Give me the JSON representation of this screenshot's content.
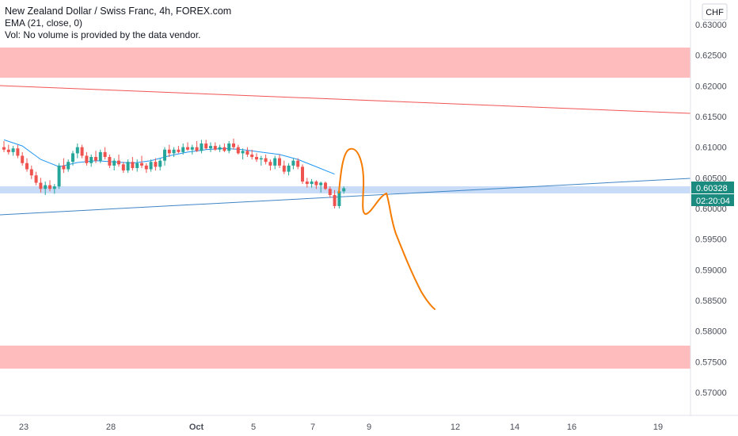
{
  "legend": {
    "title": "New Zealand Dollar / Swiss Franc, 4h, FOREX.com",
    "ema": "EMA (21, close, 0)",
    "vol": "Vol: No volume is provided by the data vendor."
  },
  "currency_button": "CHF",
  "price_label": "0.60328",
  "countdown_label": "02:20:04",
  "colors": {
    "up": "#26a69a",
    "down": "#ef5350",
    "ema": "#2196f3",
    "zone_red": "#ffbcbc",
    "zone_blue": "#c8dcf7",
    "resistance": "#f05454",
    "trend": "#3d85c6",
    "projection": "#f57c00",
    "price_badge": "#1b8a7f"
  },
  "chart_data": {
    "type": "candlestick",
    "y_ticks": [
      "0.63000",
      "0.62500",
      "0.62000",
      "0.61500",
      "0.61000",
      "0.60500",
      "0.60000",
      "0.59500",
      "0.59000",
      "0.58500",
      "0.58000",
      "0.57500",
      "0.57000"
    ],
    "x_ticks": [
      "23",
      "28",
      "Oct",
      "5",
      "7",
      "9",
      "12",
      "14",
      "16",
      "19"
    ],
    "ylim": [
      0.5655,
      0.6325
    ],
    "candles": [
      [
        0.61,
        0.611,
        0.6092,
        0.6096
      ],
      [
        0.6096,
        0.6104,
        0.6088,
        0.6092
      ],
      [
        0.6092,
        0.6102,
        0.6086,
        0.6098
      ],
      [
        0.6098,
        0.6104,
        0.6082,
        0.6086
      ],
      [
        0.6086,
        0.6092,
        0.607,
        0.6074
      ],
      [
        0.6074,
        0.6082,
        0.606,
        0.6064
      ],
      [
        0.6064,
        0.607,
        0.6048,
        0.6054
      ],
      [
        0.6054,
        0.606,
        0.6038,
        0.6042
      ],
      [
        0.6042,
        0.605,
        0.6026,
        0.6032
      ],
      [
        0.6032,
        0.6044,
        0.6022,
        0.6038
      ],
      [
        0.6038,
        0.6046,
        0.6028,
        0.6032
      ],
      [
        0.6032,
        0.604,
        0.6024,
        0.6036
      ],
      [
        0.6036,
        0.6074,
        0.6032,
        0.607
      ],
      [
        0.607,
        0.6082,
        0.6058,
        0.6064
      ],
      [
        0.6064,
        0.608,
        0.606,
        0.6076
      ],
      [
        0.6076,
        0.6094,
        0.607,
        0.609
      ],
      [
        0.609,
        0.6106,
        0.6082,
        0.61
      ],
      [
        0.61,
        0.6104,
        0.6082,
        0.6086
      ],
      [
        0.6086,
        0.6092,
        0.607,
        0.6074
      ],
      [
        0.6074,
        0.6088,
        0.6068,
        0.6084
      ],
      [
        0.6084,
        0.6094,
        0.6074,
        0.6078
      ],
      [
        0.6078,
        0.6096,
        0.6074,
        0.6092
      ],
      [
        0.6092,
        0.61,
        0.608,
        0.6084
      ],
      [
        0.6084,
        0.6088,
        0.6066,
        0.607
      ],
      [
        0.607,
        0.6082,
        0.6062,
        0.6078
      ],
      [
        0.6078,
        0.6088,
        0.6068,
        0.6072
      ],
      [
        0.6072,
        0.6076,
        0.6058,
        0.6062
      ],
      [
        0.6062,
        0.608,
        0.6058,
        0.6076
      ],
      [
        0.6076,
        0.6084,
        0.6062,
        0.6066
      ],
      [
        0.6066,
        0.608,
        0.606,
        0.6074
      ],
      [
        0.6074,
        0.6086,
        0.6066,
        0.607
      ],
      [
        0.607,
        0.6074,
        0.6058,
        0.6064
      ],
      [
        0.6064,
        0.608,
        0.606,
        0.6076
      ],
      [
        0.6076,
        0.6082,
        0.6062,
        0.6068
      ],
      [
        0.6068,
        0.6082,
        0.6062,
        0.6078
      ],
      [
        0.6078,
        0.61,
        0.607,
        0.6096
      ],
      [
        0.6096,
        0.6104,
        0.6084,
        0.609
      ],
      [
        0.609,
        0.61,
        0.6084,
        0.6096
      ],
      [
        0.6096,
        0.6102,
        0.609,
        0.6092
      ],
      [
        0.6092,
        0.6106,
        0.6088,
        0.61
      ],
      [
        0.61,
        0.6108,
        0.6094,
        0.6096
      ],
      [
        0.6096,
        0.6104,
        0.6088,
        0.61
      ],
      [
        0.61,
        0.611,
        0.6092,
        0.6094
      ],
      [
        0.6094,
        0.6112,
        0.609,
        0.6106
      ],
      [
        0.6106,
        0.6112,
        0.6096,
        0.6098
      ],
      [
        0.6098,
        0.6108,
        0.6092,
        0.6102
      ],
      [
        0.6102,
        0.6108,
        0.6094,
        0.6096
      ],
      [
        0.6096,
        0.6104,
        0.6092,
        0.61
      ],
      [
        0.61,
        0.6106,
        0.6092,
        0.6094
      ],
      [
        0.6094,
        0.611,
        0.609,
        0.6106
      ],
      [
        0.6106,
        0.6114,
        0.6096,
        0.61
      ],
      [
        0.61,
        0.6104,
        0.6088,
        0.609
      ],
      [
        0.609,
        0.6098,
        0.608,
        0.6094
      ],
      [
        0.6094,
        0.61,
        0.6084,
        0.6088
      ],
      [
        0.6088,
        0.6096,
        0.608,
        0.6084
      ],
      [
        0.6084,
        0.609,
        0.6076,
        0.608
      ],
      [
        0.608,
        0.6086,
        0.607,
        0.6082
      ],
      [
        0.6082,
        0.6088,
        0.6072,
        0.6076
      ],
      [
        0.6076,
        0.608,
        0.6062,
        0.607
      ],
      [
        0.607,
        0.6086,
        0.6064,
        0.6082
      ],
      [
        0.6082,
        0.6088,
        0.6066,
        0.607
      ],
      [
        0.607,
        0.6078,
        0.6056,
        0.606
      ],
      [
        0.606,
        0.6074,
        0.6054,
        0.607
      ],
      [
        0.607,
        0.6082,
        0.6064,
        0.6078
      ],
      [
        0.6078,
        0.6082,
        0.6064,
        0.6068
      ],
      [
        0.6068,
        0.6072,
        0.604,
        0.6044
      ],
      [
        0.6044,
        0.605,
        0.6034,
        0.604
      ],
      [
        0.604,
        0.6048,
        0.6034,
        0.6044
      ],
      [
        0.6044,
        0.6046,
        0.6032,
        0.6038
      ],
      [
        0.6038,
        0.6044,
        0.6026,
        0.6042
      ],
      [
        0.6042,
        0.6044,
        0.603,
        0.6032
      ],
      [
        0.6032,
        0.6036,
        0.6018,
        0.6022
      ],
      [
        0.6022,
        0.603,
        0.6,
        0.6004
      ],
      [
        0.6004,
        0.6034,
        0.6,
        0.6028
      ],
      [
        0.6028,
        0.6036,
        0.6024,
        0.6033
      ]
    ],
    "ema": [
      [
        0,
        0.6112
      ],
      [
        4,
        0.6102
      ],
      [
        8,
        0.608
      ],
      [
        12,
        0.6068
      ],
      [
        16,
        0.6075
      ],
      [
        20,
        0.6078
      ],
      [
        24,
        0.6076
      ],
      [
        28,
        0.6074
      ],
      [
        32,
        0.6078
      ],
      [
        36,
        0.6086
      ],
      [
        40,
        0.6092
      ],
      [
        44,
        0.6096
      ],
      [
        48,
        0.6098
      ],
      [
        52,
        0.6096
      ],
      [
        56,
        0.6092
      ],
      [
        60,
        0.6088
      ],
      [
        64,
        0.608
      ],
      [
        68,
        0.6068
      ],
      [
        72,
        0.6056
      ]
    ],
    "zones": [
      {
        "from": 0.6212,
        "to": 0.6262,
        "color": "red"
      },
      {
        "from": 0.6027,
        "to": 0.6038,
        "color": "blue"
      },
      {
        "from": 0.5738,
        "to": 0.5774,
        "color": "red"
      }
    ]
  }
}
